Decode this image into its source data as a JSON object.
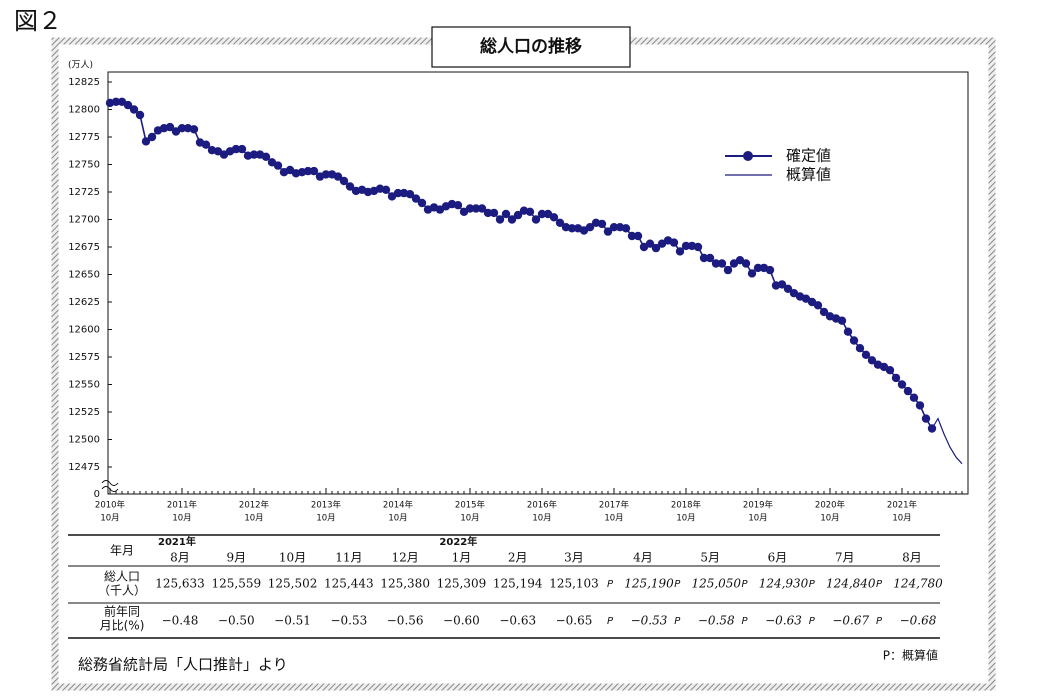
{
  "figure_label": "図２",
  "chart_data": {
    "type": "line",
    "title": "総人口の推移",
    "y_unit": "(万人)",
    "x": [
      "2010-10",
      "2010-11",
      "2010-12",
      "2011-01",
      "2011-02",
      "2011-03",
      "2011-04",
      "2011-05",
      "2011-06",
      "2011-07",
      "2011-08",
      "2011-09",
      "2011-10",
      "2011-11",
      "2011-12",
      "2012-01",
      "2012-02",
      "2012-03",
      "2012-04",
      "2012-05",
      "2012-06",
      "2012-07",
      "2012-08",
      "2012-09",
      "2012-10",
      "2012-11",
      "2012-12",
      "2013-01",
      "2013-02",
      "2013-03",
      "2013-04",
      "2013-05",
      "2013-06",
      "2013-07",
      "2013-08",
      "2013-09",
      "2013-10",
      "2013-11",
      "2013-12",
      "2014-01",
      "2014-02",
      "2014-03",
      "2014-04",
      "2014-05",
      "2014-06",
      "2014-07",
      "2014-08",
      "2014-09",
      "2014-10",
      "2014-11",
      "2014-12",
      "2015-01",
      "2015-02",
      "2015-03",
      "2015-04",
      "2015-05",
      "2015-06",
      "2015-07",
      "2015-08",
      "2015-09",
      "2015-10",
      "2015-11",
      "2015-12",
      "2016-01",
      "2016-02",
      "2016-03",
      "2016-04",
      "2016-05",
      "2016-06",
      "2016-07",
      "2016-08",
      "2016-09",
      "2016-10",
      "2016-11",
      "2016-12",
      "2017-01",
      "2017-02",
      "2017-03",
      "2017-04",
      "2017-05",
      "2017-06",
      "2017-07",
      "2017-08",
      "2017-09",
      "2017-10",
      "2017-11",
      "2017-12",
      "2018-01",
      "2018-02",
      "2018-03",
      "2018-04",
      "2018-05",
      "2018-06",
      "2018-07",
      "2018-08",
      "2018-09",
      "2018-10",
      "2018-11",
      "2018-12",
      "2019-01",
      "2019-02",
      "2019-03",
      "2019-04",
      "2019-05",
      "2019-06",
      "2019-07",
      "2019-08",
      "2019-09",
      "2019-10",
      "2019-11",
      "2019-12",
      "2020-01",
      "2020-02",
      "2020-03",
      "2020-04",
      "2020-05",
      "2020-06",
      "2020-07",
      "2020-08",
      "2020-09",
      "2020-10",
      "2020-11",
      "2020-12",
      "2021-01",
      "2021-02",
      "2021-03",
      "2021-04",
      "2021-05",
      "2021-06",
      "2021-07",
      "2021-08",
      "2021-09",
      "2021-10",
      "2021-11",
      "2021-12",
      "2022-01",
      "2022-02",
      "2022-03",
      "2022-04",
      "2022-05",
      "2022-06",
      "2022-07",
      "2022-08"
    ],
    "series": [
      {
        "name": "確定値",
        "color": "#1c1c80",
        "markers": true,
        "values": [
          12806,
          12807,
          12807,
          12804,
          12800,
          12795,
          12771,
          12775,
          12781,
          12783,
          12784,
          12780,
          12783,
          12783,
          12782,
          12770,
          12768,
          12763,
          12762,
          12759,
          12762,
          12764,
          12764,
          12758,
          12759,
          12759,
          12757,
          12752,
          12749,
          12743,
          12745,
          12742,
          12743,
          12744,
          12744,
          12739,
          12741,
          12741,
          12739,
          12735,
          12730,
          12726,
          12727,
          12725,
          12726,
          12728,
          12727,
          12721,
          12724,
          12724,
          12723,
          12719,
          12715,
          12709,
          12711,
          12709,
          12712,
          12714,
          12713,
          12707,
          12710,
          12710,
          12710,
          12706,
          12706,
          12700,
          12705,
          12700,
          12704,
          12708,
          12707,
          12700,
          12705,
          12705,
          12702,
          12697,
          12693,
          12692,
          12692,
          12690,
          12693,
          12697,
          12696,
          12689,
          12693,
          12693,
          12692,
          12685,
          12685,
          12675,
          12678,
          12674,
          12678,
          12681,
          12679,
          12671,
          12676,
          12676,
          12675,
          12665,
          12665,
          12660,
          12660,
          12654,
          12660,
          12663,
          12660,
          12651,
          12656,
          12656,
          12654,
          12640,
          12641,
          12637,
          12633,
          12630,
          12628,
          12625,
          12622,
          12616,
          12612,
          12610,
          12608,
          12598,
          12590,
          12583,
          12577,
          12572,
          12568,
          12566,
          12563,
          12556,
          12550,
          12544,
          12538,
          12531,
          12519,
          12510,
          null,
          null,
          null,
          null,
          null
        ]
      },
      {
        "name": "概算値",
        "color": "#1c1c80",
        "markers": false,
        "values": [
          null,
          null,
          null,
          null,
          null,
          null,
          null,
          null,
          null,
          null,
          null,
          null,
          null,
          null,
          null,
          null,
          null,
          null,
          null,
          null,
          null,
          null,
          null,
          null,
          null,
          null,
          null,
          null,
          null,
          null,
          null,
          null,
          null,
          null,
          null,
          null,
          null,
          null,
          null,
          null,
          null,
          null,
          null,
          null,
          null,
          null,
          null,
          null,
          null,
          null,
          null,
          null,
          null,
          null,
          null,
          null,
          null,
          null,
          null,
          null,
          null,
          null,
          null,
          null,
          null,
          null,
          null,
          null,
          null,
          null,
          null,
          null,
          null,
          null,
          null,
          null,
          null,
          null,
          null,
          null,
          null,
          null,
          null,
          null,
          null,
          null,
          null,
          null,
          null,
          null,
          null,
          null,
          null,
          null,
          null,
          null,
          null,
          null,
          null,
          null,
          null,
          null,
          null,
          null,
          null,
          null,
          null,
          null,
          null,
          null,
          null,
          null,
          null,
          null,
          null,
          null,
          null,
          null,
          null,
          null,
          null,
          null,
          null,
          null,
          null,
          null,
          null,
          null,
          null,
          null,
          null,
          null,
          null,
          null,
          null,
          null,
          null,
          12510,
          12519,
          12505,
          12493,
          12484,
          12478
        ]
      }
    ],
    "ylim": [
      12475,
      12825
    ],
    "yticks": [
      12475,
      12500,
      12525,
      12550,
      12575,
      12600,
      12625,
      12650,
      12675,
      12700,
      12725,
      12750,
      12775,
      12800,
      12825
    ],
    "axis_break_value": 0,
    "xticks": [
      {
        "value": "2010-10",
        "label": "2010年",
        "sublabel": "10月"
      },
      {
        "value": "2011-10",
        "label": "2011年",
        "sublabel": "10月"
      },
      {
        "value": "2012-10",
        "label": "2012年",
        "sublabel": "10月"
      },
      {
        "value": "2013-10",
        "label": "2013年",
        "sublabel": "10月"
      },
      {
        "value": "2014-10",
        "label": "2014年",
        "sublabel": "10月"
      },
      {
        "value": "2015-10",
        "label": "2015年",
        "sublabel": "10月"
      },
      {
        "value": "2016-10",
        "label": "2016年",
        "sublabel": "10月"
      },
      {
        "value": "2017-10",
        "label": "2017年",
        "sublabel": "10月"
      },
      {
        "value": "2018-10",
        "label": "2018年",
        "sublabel": "10月"
      },
      {
        "value": "2019-10",
        "label": "2019年",
        "sublabel": "10月"
      },
      {
        "value": "2020-10",
        "label": "2020年",
        "sublabel": "10月"
      },
      {
        "value": "2021-10",
        "label": "2021年",
        "sublabel": "10月"
      }
    ],
    "grid": false,
    "legend": "upper right"
  },
  "table": {
    "header": "年月",
    "row_labels": [
      [
        "総人口",
        "（千人）"
      ],
      [
        "前年同",
        "月比(%)"
      ]
    ],
    "provisional_mark": "P",
    "columns": [
      {
        "year": "2021年",
        "month": "8月",
        "population": "125,633",
        "change": "−0.48",
        "provisional": false
      },
      {
        "month": "9月",
        "population": "125,559",
        "change": "−0.50",
        "provisional": false
      },
      {
        "month": "10月",
        "population": "125,502",
        "change": "−0.51",
        "provisional": false
      },
      {
        "month": "11月",
        "population": "125,443",
        "change": "−0.53",
        "provisional": false
      },
      {
        "month": "12月",
        "population": "125,380",
        "change": "−0.56",
        "provisional": false
      },
      {
        "year": "2022年",
        "month": "1月",
        "population": "125,309",
        "change": "−0.60",
        "provisional": false
      },
      {
        "month": "2月",
        "population": "125,194",
        "change": "−0.63",
        "provisional": false
      },
      {
        "month": "3月",
        "population": "125,103",
        "change": "−0.65",
        "provisional": false
      },
      {
        "month": "4月",
        "population": "125,190",
        "change": "−0.53",
        "provisional": true
      },
      {
        "month": "5月",
        "population": "125,050",
        "change": "−0.58",
        "provisional": true
      },
      {
        "month": "6月",
        "population": "124,930",
        "change": "−0.63",
        "provisional": true
      },
      {
        "month": "7月",
        "population": "124,840",
        "change": "−0.67",
        "provisional": true
      },
      {
        "month": "8月",
        "population": "124,780",
        "change": "−0.68",
        "provisional": true
      }
    ]
  },
  "source": "総務省統計局「人口推計」より",
  "footnote": "P：概算値"
}
